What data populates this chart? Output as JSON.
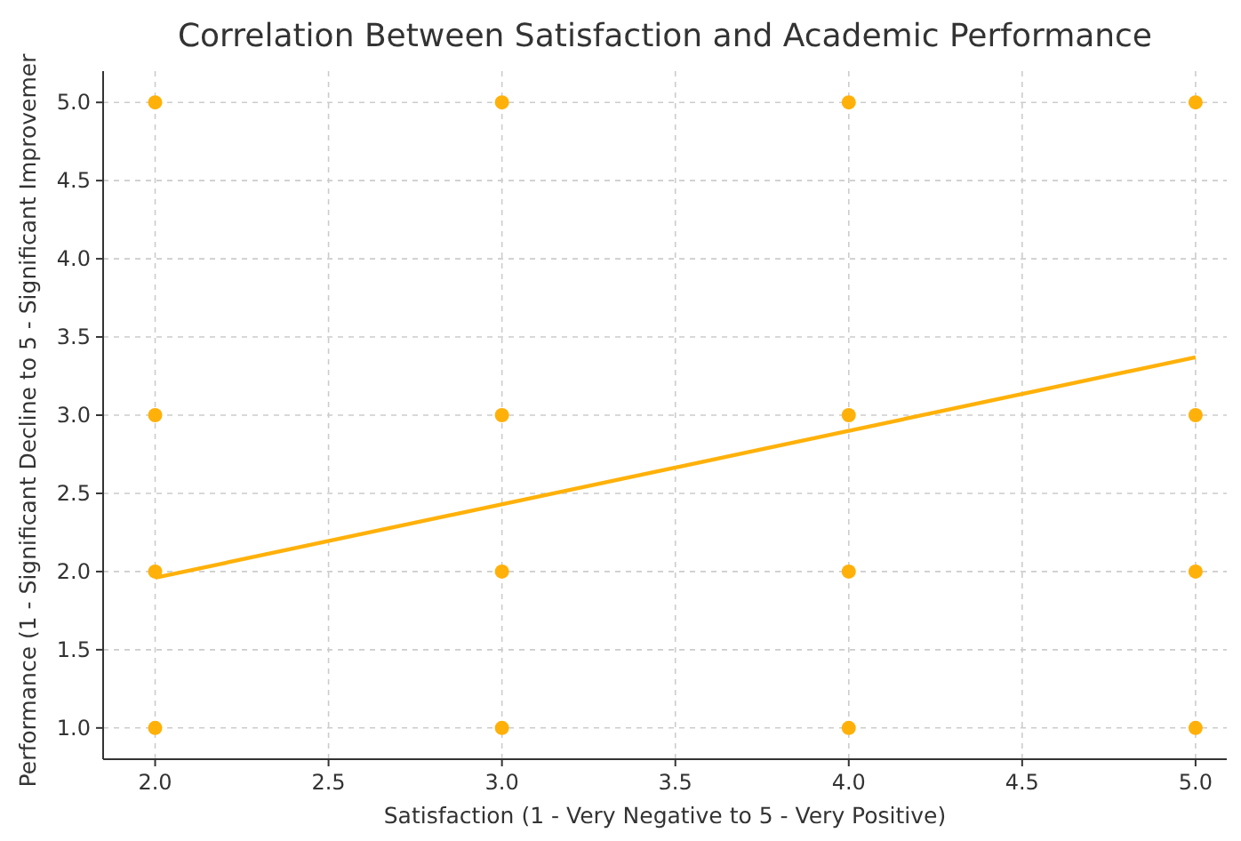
{
  "chart_data": {
    "type": "scatter",
    "title": "Correlation Between Satisfaction and Academic Performance",
    "xlabel": "Satisfaction (1 - Very Negative to 5 - Very Positive)",
    "ylabel": "Performance (1 - Significant Decline to 5 - Significant Improvemer",
    "xlim": [
      1.85,
      5.09
    ],
    "ylim": [
      0.8,
      5.2
    ],
    "xticks": [
      {
        "value": 2,
        "label": "2.0"
      },
      2.5,
      {
        "value": 3,
        "label": "3.0"
      },
      3.5,
      {
        "value": 4,
        "label": "4.0"
      },
      4.5,
      {
        "value": 5,
        "label": "5.0"
      }
    ],
    "yticks": [
      {
        "value": 1,
        "label": "1.0"
      },
      1.5,
      {
        "value": 2,
        "label": "2.0"
      },
      2.5,
      {
        "value": 3,
        "label": "3.0"
      },
      3.5,
      {
        "value": 4,
        "label": "4.0"
      },
      4.5,
      {
        "value": 5,
        "label": "5.0"
      }
    ],
    "grid": true,
    "marker": "circle",
    "series": [
      {
        "type": "scatter",
        "color": "#ffb10a",
        "x": [
          2,
          2,
          2,
          2,
          3,
          3,
          3,
          3,
          4,
          4,
          4,
          4,
          5,
          5,
          5,
          5
        ],
        "values": [
          5,
          3,
          2,
          1,
          5,
          3,
          2,
          1,
          5,
          3,
          2,
          1,
          5,
          3,
          2,
          1
        ]
      },
      {
        "type": "line",
        "color": "#ffb10a",
        "x": [
          2,
          5
        ],
        "values": [
          1.96,
          3.37
        ],
        "marker": "none",
        "line_style": "solid"
      }
    ]
  }
}
